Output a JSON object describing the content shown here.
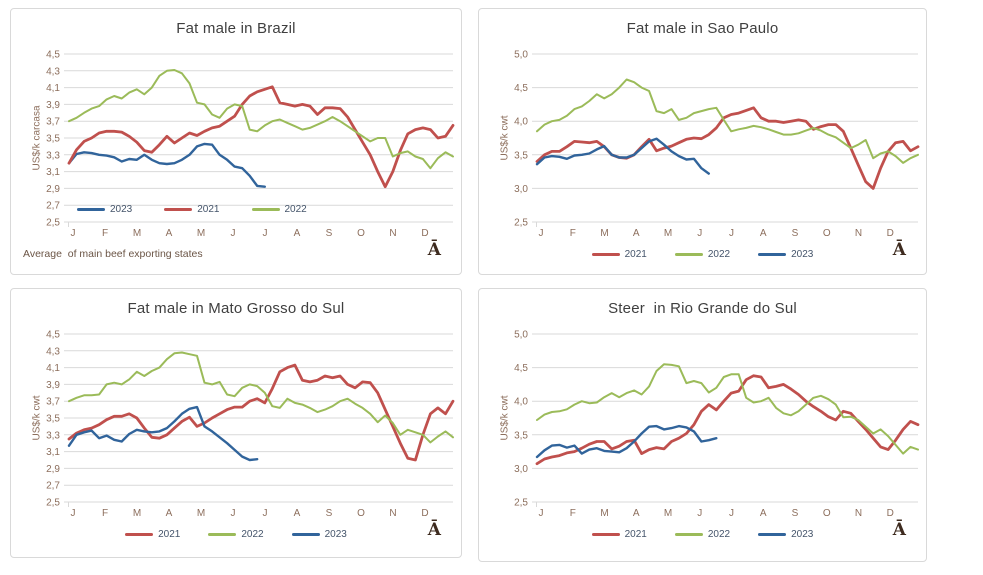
{
  "page": {
    "background": "#ffffff"
  },
  "colors": {
    "red": "#C0504D",
    "green": "#9BBB59",
    "blue": "#31649B",
    "grid": "#D9D9D9",
    "axis_text": "#8C6E5C",
    "title_text": "#3F3F3F",
    "legend_text": "#44546A",
    "footnote_text": "#6B5546",
    "glyph_text": "#3E2B1F",
    "panel_border": "#D9D9D9"
  },
  "months": [
    "J",
    "F",
    "M",
    "A",
    "M",
    "J",
    "J",
    "A",
    "S",
    "O",
    "N",
    "D"
  ],
  "chart_data": [
    {
      "type": "line",
      "title": "Fat male in Brazil",
      "ylabel": "US$/k carcasa",
      "ylim": [
        2.5,
        4.5
      ],
      "ytick_step": 0.2,
      "grid": true,
      "legend_position": "inside-bottom-left",
      "legend_order": [
        "2023",
        "2021",
        "2022"
      ],
      "footnote": "Average  of main beef exporting states",
      "corner_glyph": "Ā",
      "series": [
        {
          "name": "2023",
          "color": "#31649B",
          "values": [
            3.2,
            3.31,
            3.33,
            3.32,
            3.3,
            3.29,
            3.27,
            3.22,
            3.25,
            3.24,
            3.3,
            3.24,
            3.2,
            3.19,
            3.2,
            3.24,
            3.3,
            3.4,
            3.43,
            3.42,
            3.3,
            3.24,
            3.16,
            3.14,
            3.05,
            2.93,
            2.92
          ]
        },
        {
          "name": "2021",
          "color": "#C0504D",
          "values": [
            3.2,
            3.36,
            3.46,
            3.5,
            3.56,
            3.58,
            3.58,
            3.57,
            3.52,
            3.45,
            3.35,
            3.33,
            3.42,
            3.52,
            3.44,
            3.5,
            3.56,
            3.53,
            3.58,
            3.62,
            3.64,
            3.7,
            3.76,
            3.9,
            4.0,
            4.05,
            4.08,
            4.11,
            3.92,
            3.9,
            3.88,
            3.9,
            3.88,
            3.78,
            3.86,
            3.86,
            3.85,
            3.75,
            3.6,
            3.45,
            3.3,
            3.1,
            2.92,
            3.1,
            3.35,
            3.55,
            3.6,
            3.62,
            3.6,
            3.5,
            3.52,
            3.65
          ]
        },
        {
          "name": "2022",
          "color": "#9BBB59",
          "values": [
            3.7,
            3.74,
            3.8,
            3.85,
            3.88,
            3.96,
            4.0,
            3.97,
            4.04,
            4.08,
            4.02,
            4.1,
            4.24,
            4.3,
            4.31,
            4.27,
            4.15,
            3.92,
            3.9,
            3.78,
            3.74,
            3.85,
            3.9,
            3.88,
            3.6,
            3.58,
            3.65,
            3.7,
            3.72,
            3.68,
            3.64,
            3.6,
            3.62,
            3.66,
            3.7,
            3.75,
            3.7,
            3.64,
            3.58,
            3.52,
            3.46,
            3.5,
            3.5,
            3.28,
            3.32,
            3.34,
            3.28,
            3.25,
            3.14,
            3.26,
            3.33,
            3.28
          ]
        }
      ]
    },
    {
      "type": "line",
      "title": "Fat male in Sao Paulo",
      "ylabel": "US$/k cwt",
      "ylim": [
        2.5,
        5.0
      ],
      "ytick_step": 0.5,
      "grid": true,
      "legend_position": "bottom-center",
      "legend_order": [
        "2021",
        "2022",
        "2023"
      ],
      "corner_glyph": "Ā",
      "series": [
        {
          "name": "2021",
          "color": "#C0504D",
          "values": [
            3.4,
            3.5,
            3.55,
            3.55,
            3.62,
            3.7,
            3.69,
            3.68,
            3.7,
            3.62,
            3.5,
            3.46,
            3.45,
            3.5,
            3.62,
            3.73,
            3.56,
            3.6,
            3.63,
            3.68,
            3.73,
            3.75,
            3.74,
            3.8,
            3.9,
            4.05,
            4.1,
            4.12,
            4.16,
            4.2,
            4.05,
            4.0,
            4.0,
            3.98,
            4.0,
            4.02,
            4.0,
            3.88,
            3.92,
            3.95,
            3.95,
            3.85,
            3.6,
            3.35,
            3.1,
            3.0,
            3.3,
            3.55,
            3.68,
            3.7,
            3.56,
            3.62
          ]
        },
        {
          "name": "2022",
          "color": "#9BBB59",
          "values": [
            3.85,
            3.95,
            4.0,
            4.02,
            4.08,
            4.18,
            4.22,
            4.3,
            4.4,
            4.34,
            4.4,
            4.5,
            4.62,
            4.58,
            4.5,
            4.45,
            4.15,
            4.12,
            4.18,
            4.02,
            4.05,
            4.12,
            4.15,
            4.18,
            4.2,
            4.02,
            3.85,
            3.88,
            3.9,
            3.93,
            3.91,
            3.88,
            3.84,
            3.8,
            3.8,
            3.82,
            3.86,
            3.9,
            3.86,
            3.8,
            3.76,
            3.68,
            3.6,
            3.65,
            3.72,
            3.45,
            3.52,
            3.55,
            3.48,
            3.38,
            3.45,
            3.5
          ]
        },
        {
          "name": "2023",
          "color": "#31649B",
          "values": [
            3.36,
            3.46,
            3.48,
            3.47,
            3.44,
            3.49,
            3.5,
            3.52,
            3.58,
            3.63,
            3.5,
            3.46,
            3.46,
            3.5,
            3.6,
            3.7,
            3.74,
            3.65,
            3.55,
            3.48,
            3.43,
            3.44,
            3.3,
            3.22
          ]
        }
      ]
    },
    {
      "type": "line",
      "title": "Fat male in Mato Grosso do Sul",
      "ylabel": "US$/k cwt",
      "ylim": [
        2.5,
        4.5
      ],
      "ytick_step": 0.2,
      "grid": true,
      "legend_position": "bottom-center",
      "legend_order": [
        "2021",
        "2022",
        "2023"
      ],
      "corner_glyph": "Ā",
      "series": [
        {
          "name": "2021",
          "color": "#C0504D",
          "values": [
            3.25,
            3.32,
            3.36,
            3.38,
            3.42,
            3.48,
            3.52,
            3.52,
            3.55,
            3.5,
            3.38,
            3.27,
            3.26,
            3.3,
            3.38,
            3.46,
            3.51,
            3.4,
            3.44,
            3.5,
            3.55,
            3.6,
            3.63,
            3.63,
            3.7,
            3.73,
            3.68,
            3.85,
            4.05,
            4.1,
            4.13,
            3.95,
            3.93,
            3.95,
            4.0,
            3.98,
            4.0,
            3.9,
            3.86,
            3.93,
            3.92,
            3.8,
            3.6,
            3.4,
            3.2,
            3.02,
            3.0,
            3.3,
            3.55,
            3.62,
            3.55,
            3.7
          ]
        },
        {
          "name": "2022",
          "color": "#9BBB59",
          "values": [
            3.7,
            3.74,
            3.77,
            3.77,
            3.78,
            3.9,
            3.92,
            3.9,
            3.96,
            4.05,
            4.0,
            4.06,
            4.1,
            4.2,
            4.27,
            4.28,
            4.26,
            4.24,
            3.92,
            3.9,
            3.93,
            3.78,
            3.76,
            3.86,
            3.9,
            3.88,
            3.8,
            3.64,
            3.62,
            3.73,
            3.68,
            3.66,
            3.62,
            3.57,
            3.6,
            3.64,
            3.7,
            3.73,
            3.67,
            3.62,
            3.55,
            3.45,
            3.53,
            3.44,
            3.3,
            3.36,
            3.33,
            3.3,
            3.21,
            3.28,
            3.34,
            3.27
          ]
        },
        {
          "name": "2023",
          "color": "#31649B",
          "values": [
            3.17,
            3.3,
            3.33,
            3.35,
            3.26,
            3.29,
            3.24,
            3.22,
            3.31,
            3.36,
            3.34,
            3.33,
            3.34,
            3.38,
            3.46,
            3.55,
            3.61,
            3.63,
            3.4,
            3.34,
            3.27,
            3.2,
            3.12,
            3.04,
            3.0,
            3.01
          ]
        }
      ]
    },
    {
      "type": "line",
      "title": "Steer  in Rio Grande do Sul",
      "ylabel": "US$/k cwt",
      "ylim": [
        2.5,
        5.0
      ],
      "ytick_step": 0.5,
      "grid": true,
      "legend_position": "bottom-center",
      "legend_order": [
        "2021",
        "2022",
        "2023"
      ],
      "corner_glyph": "Ā",
      "series": [
        {
          "name": "2021",
          "color": "#C0504D",
          "values": [
            3.07,
            3.14,
            3.17,
            3.19,
            3.23,
            3.25,
            3.3,
            3.36,
            3.4,
            3.4,
            3.29,
            3.33,
            3.4,
            3.42,
            3.22,
            3.28,
            3.31,
            3.29,
            3.4,
            3.45,
            3.52,
            3.65,
            3.85,
            3.95,
            3.87,
            4.0,
            4.12,
            4.15,
            4.32,
            4.38,
            4.36,
            4.2,
            4.22,
            4.25,
            4.18,
            4.1,
            4.0,
            3.92,
            3.85,
            3.77,
            3.72,
            3.85,
            3.82,
            3.7,
            3.58,
            3.45,
            3.32,
            3.28,
            3.42,
            3.58,
            3.7,
            3.65
          ]
        },
        {
          "name": "2022",
          "color": "#9BBB59",
          "values": [
            3.72,
            3.8,
            3.84,
            3.85,
            3.88,
            3.95,
            4.0,
            3.97,
            3.98,
            4.06,
            4.12,
            4.06,
            4.12,
            4.16,
            4.1,
            4.22,
            4.45,
            4.55,
            4.54,
            4.52,
            4.27,
            4.3,
            4.27,
            4.13,
            4.2,
            4.36,
            4.4,
            4.4,
            4.05,
            3.98,
            4.0,
            4.05,
            3.9,
            3.82,
            3.79,
            3.85,
            3.95,
            4.05,
            4.08,
            4.03,
            3.95,
            3.76,
            3.77,
            3.72,
            3.62,
            3.52,
            3.58,
            3.48,
            3.35,
            3.22,
            3.32,
            3.28
          ]
        },
        {
          "name": "2023",
          "color": "#31649B",
          "values": [
            3.17,
            3.27,
            3.34,
            3.35,
            3.31,
            3.34,
            3.22,
            3.28,
            3.3,
            3.26,
            3.25,
            3.24,
            3.3,
            3.4,
            3.52,
            3.62,
            3.63,
            3.58,
            3.6,
            3.63,
            3.61,
            3.55,
            3.4,
            3.42,
            3.45
          ]
        }
      ]
    }
  ]
}
